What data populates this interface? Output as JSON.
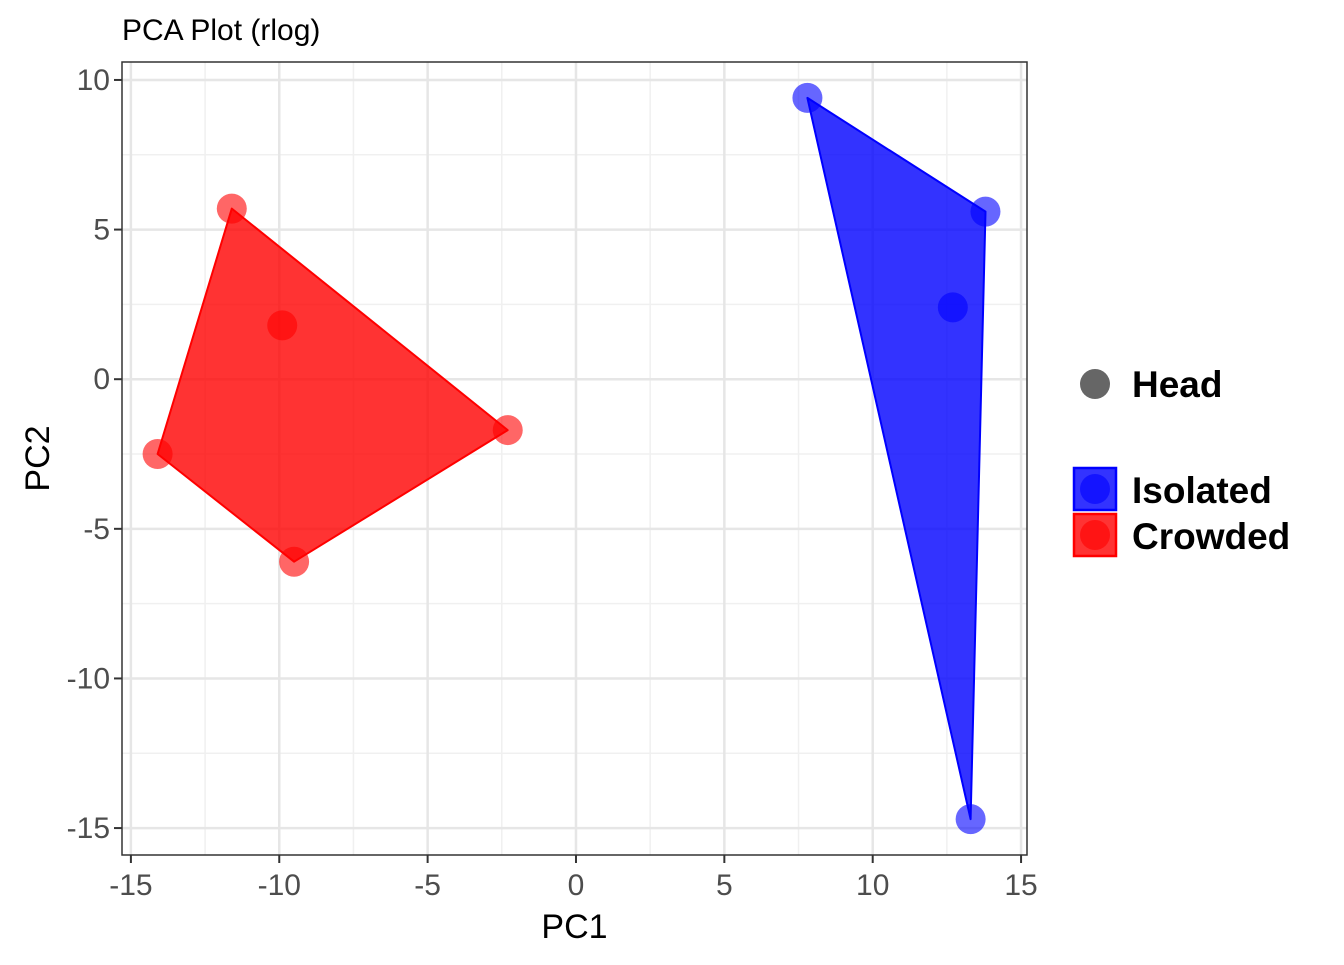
{
  "chart_data": {
    "type": "scatter",
    "title": "PCA Plot (rlog)",
    "xlabel": "PC1",
    "ylabel": "PC2",
    "xlim": [
      -15.3,
      15.2
    ],
    "ylim": [
      -15.9,
      10.6
    ],
    "x_ticks": [
      -15,
      -10,
      -5,
      0,
      5,
      10,
      15
    ],
    "y_ticks": [
      -15,
      -10,
      -5,
      0,
      5,
      10
    ],
    "x_tick_labels": [
      "-15",
      "-10",
      "-5",
      "0",
      "5",
      "10",
      "15"
    ],
    "y_tick_labels": [
      "-15",
      "-10",
      "-5",
      "0",
      "5",
      "10"
    ],
    "grid": true,
    "hull_polygons": true,
    "legend": {
      "position": "right",
      "shape_title": "",
      "shape_items": [
        {
          "label": "Head",
          "color": "#666666"
        }
      ],
      "group_items": [
        {
          "label": "Isolated",
          "color": "#0000FF"
        },
        {
          "label": "Crowded",
          "color": "#FF0000"
        }
      ]
    },
    "series": [
      {
        "name": "Isolated",
        "color": "#0000FF",
        "points": [
          {
            "x": 7.8,
            "y": 9.4
          },
          {
            "x": 13.8,
            "y": 5.6
          },
          {
            "x": 12.7,
            "y": 2.4
          },
          {
            "x": 13.3,
            "y": -14.7
          }
        ]
      },
      {
        "name": "Crowded",
        "color": "#FF0000",
        "points": [
          {
            "x": -11.6,
            "y": 5.7
          },
          {
            "x": -9.9,
            "y": 1.8
          },
          {
            "x": -2.3,
            "y": -1.7
          },
          {
            "x": -14.1,
            "y": -2.5
          },
          {
            "x": -9.5,
            "y": -6.1
          }
        ]
      }
    ]
  }
}
